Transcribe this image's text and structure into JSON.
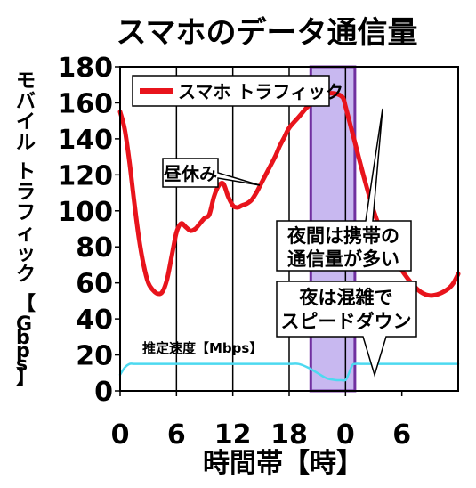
{
  "chart_data": {
    "type": "line",
    "title": "スマホのデータ通信量",
    "xlabel": "時間帯【時】",
    "ylabel": "モバイル トラフィック 【Gbps】",
    "x_ticks": [
      "0",
      "6",
      "12",
      "18",
      "0",
      "6"
    ],
    "x_range": [
      0,
      36
    ],
    "y_ticks": [
      "0",
      "20",
      "40",
      "60",
      "80",
      "100",
      "120",
      "140",
      "160",
      "180"
    ],
    "ylim": [
      0,
      180
    ],
    "grid": "vertical lines every 6 hours",
    "highlight": {
      "x_range": [
        20.3,
        25
      ],
      "color": "#c8b8f0",
      "border": "#7030a0"
    },
    "series": [
      {
        "name": "スマホ トラフィック",
        "color": "#e8141c",
        "x": [
          0,
          0.5,
          1,
          1.5,
          2,
          2.5,
          3,
          3.5,
          4,
          4.5,
          5,
          5.5,
          6,
          6.5,
          7,
          7.5,
          8,
          8.5,
          9,
          9.5,
          10,
          10.5,
          11,
          11.5,
          12,
          12.3,
          12.6,
          13,
          13.5,
          14,
          14.5,
          15,
          15.5,
          16,
          16.5,
          17,
          17.5,
          18,
          19,
          20,
          21,
          22,
          23,
          23.7,
          24,
          24.5,
          25,
          26,
          27,
          28,
          29,
          30,
          31,
          32,
          33,
          34,
          35,
          35.5,
          36
        ],
        "values": [
          155,
          145,
          127,
          105,
          85,
          70,
          60,
          56,
          54,
          55,
          62,
          75,
          88,
          93,
          91,
          89,
          90,
          93,
          96,
          98,
          108,
          114,
          115,
          108,
          103,
          102,
          102,
          103,
          104,
          106,
          110,
          115,
          120,
          125,
          130,
          136,
          141,
          146,
          152,
          158,
          162,
          165,
          165,
          163,
          158,
          148,
          138,
          118,
          100,
          86,
          75,
          67,
          60,
          55,
          53,
          54,
          57,
          60,
          65
        ]
      },
      {
        "name": "推定速度【Mbps】",
        "color": "#4dd9f0",
        "x": [
          0,
          0.5,
          1,
          1.5,
          2,
          4,
          8,
          12,
          16,
          18,
          19,
          20,
          21,
          22,
          23,
          23.5,
          24,
          24.3,
          24.7,
          25,
          26,
          30,
          36
        ],
        "values": [
          9,
          13,
          15,
          15,
          15,
          15,
          15,
          15,
          15,
          15,
          15,
          13,
          10,
          7,
          6,
          6,
          6,
          9,
          14,
          15,
          15,
          15,
          15
        ]
      }
    ],
    "legend": {
      "label": "スマホ トラフィック",
      "position": "top-left"
    },
    "annotations": [
      {
        "text": "昼休み",
        "points_to_x": 12.4
      },
      {
        "lines": [
          "夜間は携帯の",
          "通信量が多い"
        ],
        "points_to_x": 23.4
      },
      {
        "lines": [
          "夜は混雑で",
          "スピードダウン"
        ],
        "points_to_x": 23.0
      },
      {
        "text": "推定速度【Mbps】",
        "position": "above speed line, left"
      }
    ]
  }
}
